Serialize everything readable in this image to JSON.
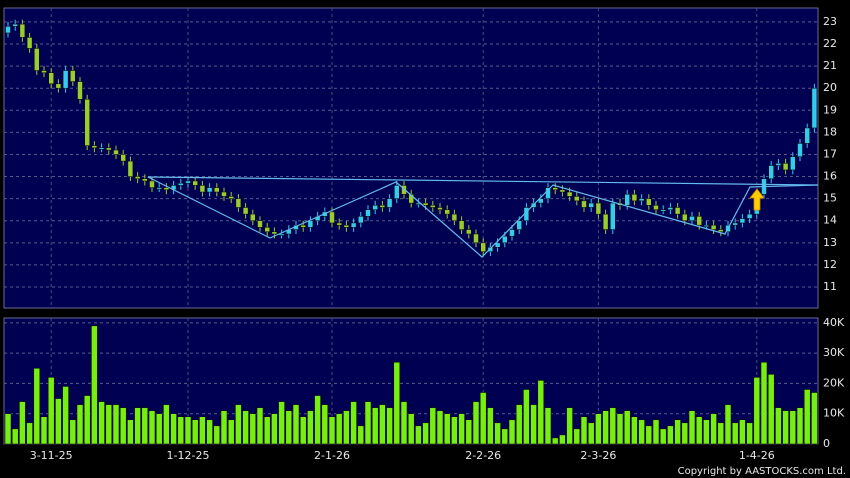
{
  "chart_data": {
    "type": "candlestick",
    "categories": [
      null,
      null,
      null,
      null,
      null,
      null,
      "3-11-25",
      null,
      null,
      null,
      null,
      null,
      null,
      null,
      null,
      null,
      null,
      null,
      null,
      null,
      null,
      null,
      null,
      null,
      null,
      "1-12-25",
      null,
      null,
      null,
      null,
      null,
      null,
      null,
      null,
      null,
      null,
      null,
      null,
      null,
      null,
      null,
      null,
      null,
      null,
      null,
      "2-1-26",
      null,
      null,
      null,
      null,
      null,
      null,
      null,
      null,
      null,
      null,
      null,
      null,
      null,
      null,
      null,
      null,
      null,
      null,
      null,
      null,
      "2-2-26",
      null,
      null,
      null,
      null,
      null,
      null,
      null,
      null,
      null,
      null,
      null,
      null,
      null,
      null,
      null,
      "2-3-26",
      null,
      null,
      null,
      null,
      null,
      null,
      null,
      null,
      null,
      null,
      null,
      null,
      null,
      null,
      null,
      null,
      null,
      null,
      null,
      null,
      null,
      "1-4-26",
      null,
      null,
      null,
      null,
      null,
      null,
      null,
      null
    ],
    "open": [
      22.5,
      22.8,
      22.9,
      22.3,
      21.8,
      20.8,
      20.7,
      20.2,
      20.0,
      20.8,
      20.3,
      19.5,
      17.4,
      17.3,
      17.3,
      17.2,
      17.0,
      16.7,
      16.0,
      15.9,
      15.8,
      15.5,
      15.5,
      15.4,
      15.6,
      15.7,
      15.8,
      15.6,
      15.3,
      15.5,
      15.3,
      15.1,
      15.0,
      14.6,
      14.3,
      14.0,
      13.7,
      13.5,
      13.4,
      13.4,
      13.6,
      13.8,
      13.7,
      14.0,
      14.2,
      14.4,
      13.9,
      13.8,
      13.7,
      13.9,
      14.2,
      14.5,
      14.7,
      14.6,
      15.0,
      15.6,
      15.2,
      14.8,
      14.8,
      14.7,
      14.6,
      14.5,
      14.3,
      14.0,
      13.6,
      13.4,
      13.0,
      12.6,
      12.8,
      13.0,
      13.3,
      13.6,
      14.0,
      14.6,
      14.8,
      15.0,
      15.5,
      15.4,
      15.3,
      15.1,
      14.9,
      14.6,
      14.8,
      14.3,
      13.6,
      14.8,
      14.7,
      15.2,
      14.9,
      15.0,
      14.7,
      14.5,
      14.5,
      14.6,
      14.3,
      14.0,
      14.2,
      13.8,
      13.8,
      13.6,
      13.5,
      13.8,
      13.9,
      14.1,
      14.3,
      15.2,
      15.9,
      16.5,
      16.6,
      16.3,
      16.9,
      17.5,
      18.2
    ],
    "high": [
      23.0,
      23.1,
      23.1,
      22.5,
      22.0,
      21.0,
      20.9,
      20.4,
      21.0,
      21.0,
      20.5,
      19.7,
      17.6,
      17.5,
      17.5,
      17.4,
      17.2,
      16.9,
      16.2,
      16.1,
      16.0,
      15.7,
      15.7,
      15.8,
      15.9,
      16.0,
      16.0,
      15.8,
      15.7,
      15.7,
      15.5,
      15.3,
      15.2,
      14.8,
      14.5,
      14.2,
      13.9,
      13.7,
      13.6,
      13.8,
      14.0,
      14.0,
      14.2,
      14.4,
      14.6,
      14.6,
      14.1,
      14.0,
      14.1,
      14.4,
      14.7,
      14.9,
      14.9,
      15.2,
      15.8,
      15.8,
      15.4,
      15.0,
      15.0,
      14.9,
      14.8,
      14.7,
      14.5,
      14.2,
      13.8,
      13.6,
      13.2,
      13.0,
      13.2,
      13.5,
      13.8,
      14.2,
      14.8,
      15.0,
      15.2,
      15.7,
      15.7,
      15.6,
      15.5,
      15.3,
      15.1,
      15.0,
      15.0,
      14.5,
      15.0,
      15.0,
      15.4,
      15.4,
      15.2,
      15.2,
      14.9,
      14.7,
      14.8,
      14.8,
      14.5,
      14.4,
      14.4,
      14.0,
      14.0,
      13.8,
      14.0,
      14.1,
      14.3,
      14.5,
      15.4,
      16.1,
      16.7,
      16.8,
      16.8,
      17.1,
      17.7,
      18.4,
      20.2
    ],
    "low": [
      22.3,
      22.6,
      22.1,
      21.6,
      20.6,
      20.5,
      20.0,
      19.8,
      19.8,
      20.1,
      19.3,
      17.2,
      17.1,
      17.1,
      17.0,
      16.8,
      16.5,
      15.8,
      15.7,
      15.6,
      15.3,
      15.3,
      15.2,
      15.2,
      15.4,
      15.5,
      15.4,
      15.1,
      15.1,
      15.1,
      14.9,
      14.8,
      14.4,
      14.1,
      13.8,
      13.5,
      13.3,
      13.2,
      13.2,
      13.2,
      13.4,
      13.5,
      13.5,
      13.8,
      14.0,
      13.7,
      13.6,
      13.5,
      13.5,
      13.7,
      14.0,
      14.3,
      14.4,
      14.4,
      14.8,
      15.0,
      14.6,
      14.6,
      14.5,
      14.4,
      14.3,
      14.1,
      13.8,
      13.4,
      13.2,
      12.8,
      12.4,
      12.4,
      12.6,
      12.8,
      13.1,
      13.4,
      13.8,
      14.4,
      14.6,
      14.8,
      15.2,
      15.1,
      14.9,
      14.7,
      14.4,
      14.4,
      14.1,
      13.4,
      13.4,
      14.5,
      14.5,
      14.7,
      14.7,
      14.5,
      14.3,
      14.3,
      14.3,
      14.1,
      13.8,
      13.8,
      13.6,
      13.6,
      13.4,
      13.3,
      13.3,
      13.6,
      13.7,
      13.9,
      14.1,
      15.0,
      15.7,
      16.3,
      16.1,
      16.1,
      16.7,
      17.3,
      18.0
    ],
    "close": [
      22.8,
      22.9,
      22.3,
      21.8,
      20.8,
      20.7,
      20.2,
      20.0,
      20.8,
      20.3,
      19.5,
      17.4,
      17.3,
      17.3,
      17.2,
      17.0,
      16.7,
      16.0,
      15.9,
      15.8,
      15.5,
      15.5,
      15.4,
      15.6,
      15.7,
      15.8,
      15.6,
      15.3,
      15.5,
      15.3,
      15.1,
      15.0,
      14.6,
      14.3,
      14.0,
      13.7,
      13.5,
      13.4,
      13.4,
      13.6,
      13.8,
      13.7,
      14.0,
      14.2,
      14.4,
      13.9,
      13.8,
      13.7,
      13.9,
      14.2,
      14.5,
      14.7,
      14.6,
      15.0,
      15.6,
      15.2,
      14.8,
      14.8,
      14.7,
      14.6,
      14.5,
      14.3,
      14.0,
      13.6,
      13.4,
      13.0,
      12.6,
      12.8,
      13.0,
      13.3,
      13.6,
      14.0,
      14.6,
      14.8,
      15.0,
      15.5,
      15.4,
      15.3,
      15.1,
      14.9,
      14.6,
      14.8,
      14.3,
      13.6,
      14.8,
      14.7,
      15.2,
      14.9,
      15.0,
      14.7,
      14.5,
      14.5,
      14.6,
      14.3,
      14.0,
      14.2,
      13.8,
      13.8,
      13.6,
      13.5,
      13.8,
      13.9,
      14.1,
      14.3,
      15.2,
      15.9,
      16.5,
      16.6,
      16.3,
      16.9,
      17.5,
      18.2,
      20.0
    ],
    "volume": [
      10000,
      5000,
      14000,
      7000,
      25000,
      9000,
      22000,
      15000,
      19000,
      8000,
      13000,
      16000,
      39000,
      14000,
      13000,
      13000,
      12000,
      8000,
      12000,
      12000,
      11000,
      10000,
      13000,
      10000,
      9000,
      9000,
      8000,
      9000,
      8000,
      6000,
      11000,
      8000,
      13000,
      11000,
      10000,
      12000,
      9000,
      10000,
      14000,
      11000,
      13000,
      9000,
      11000,
      16000,
      13000,
      9000,
      10000,
      11000,
      14000,
      6000,
      14000,
      12000,
      13000,
      12000,
      27000,
      14000,
      10000,
      6000,
      7000,
      12000,
      11000,
      10000,
      9000,
      10000,
      8000,
      14000,
      17000,
      12000,
      7000,
      5000,
      8000,
      13000,
      18000,
      13000,
      21000,
      12000,
      2000,
      3000,
      12000,
      5000,
      9000,
      7000,
      10000,
      11000,
      12000,
      10000,
      11000,
      9000,
      8000,
      6000,
      8000,
      5000,
      6000,
      8000,
      7000,
      11000,
      9000,
      8000,
      10000,
      7000,
      13000,
      7000,
      8000,
      7000,
      22000,
      27000,
      23000,
      12000,
      11000,
      11000,
      12000,
      18000,
      17000
    ],
    "ylim": [
      10.05,
      23.63
    ],
    "yticks": [
      11,
      12,
      13,
      14,
      15,
      16,
      17,
      18,
      19,
      20,
      21,
      22,
      23
    ],
    "volume_ylim": [
      0,
      41600
    ],
    "volume_yticks": [
      0,
      {
        "value": 10000,
        "label": "10K"
      },
      {
        "value": 20000,
        "label": "20K"
      },
      {
        "value": 30000,
        "label": "30K"
      },
      {
        "value": 40000,
        "label": "40K"
      }
    ],
    "up_color": "#33ccee",
    "down_color": "#99cc33",
    "volume_color": "#77ee11",
    "grid": true,
    "copyright": "Copyright by AASTOCKS.com Ltd."
  }
}
